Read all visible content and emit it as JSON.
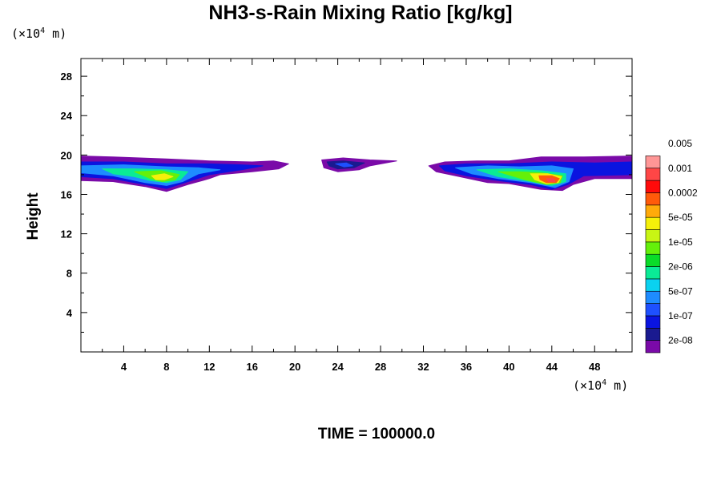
{
  "chart_data": {
    "type": "heatmap",
    "title": "NH3-s-Rain Mixing Ratio [kg/kg]",
    "xlabel": "",
    "ylabel": "Height",
    "x_unit_parts": [
      "(×10",
      "4",
      " m)"
    ],
    "y_unit_parts": [
      "(×10",
      "4",
      " m)"
    ],
    "xlim": [
      0,
      51.5
    ],
    "ylim": [
      0,
      29.8
    ],
    "x_ticks": [
      4,
      8,
      12,
      16,
      20,
      24,
      28,
      32,
      36,
      40,
      44,
      48
    ],
    "y_ticks": [
      4,
      8,
      12,
      16,
      20,
      24,
      28
    ],
    "footer": "TIME = 100000.0",
    "colorbar": {
      "colors": [
        "#7a0aa8",
        "#1a1a90",
        "#0a14e0",
        "#1e50ff",
        "#1e8cff",
        "#0ad2f0",
        "#0aeb96",
        "#0adc28",
        "#64f00a",
        "#c8f514",
        "#f5f00a",
        "#ffaa0a",
        "#ff5a0a",
        "#ff0a0a",
        "#ff4646",
        "#ff9696"
      ],
      "labels": [
        "2e-08",
        "1e-07",
        "5e-07",
        "2e-06",
        "1e-05",
        "5e-05",
        "0.0002",
        "0.001",
        "0.005"
      ]
    },
    "regions": [
      {
        "name": "left-cloud",
        "x_range": [
          0,
          20
        ],
        "y_range": [
          16.3,
          20
        ],
        "max_level": 10
      },
      {
        "name": "center-cloud",
        "x_range": [
          22.5,
          29.5
        ],
        "y_range": [
          18.2,
          19.7
        ],
        "max_level": 3
      },
      {
        "name": "right-cloud",
        "x_range": [
          32.5,
          51.5
        ],
        "y_range": [
          16.3,
          19.9
        ],
        "max_level": 14
      }
    ]
  }
}
